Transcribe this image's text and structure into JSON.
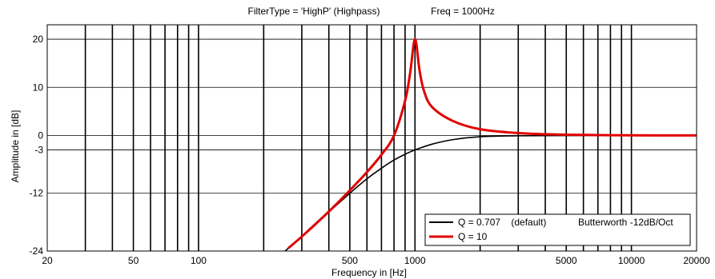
{
  "chart_data": {
    "type": "line",
    "title_left": "FilterType = 'HighP' (Highpass)",
    "title_right": "Freq = 1000Hz",
    "xlabel": "Frequency in [Hz]",
    "ylabel": "Amplitude in [dB]",
    "x_scale": "log",
    "xlim": [
      20,
      20000
    ],
    "ylim": [
      -24,
      23
    ],
    "x_ticks": [
      20,
      50,
      100,
      500,
      1000,
      5000,
      10000,
      20000
    ],
    "x_tick_labels": [
      "20",
      "50",
      "100",
      "500",
      "1000",
      "5000",
      "10000",
      "20000"
    ],
    "y_ticks": [
      -24,
      -12,
      -3,
      0,
      10,
      20
    ],
    "y_tick_labels": [
      "-24",
      "-12",
      "-3",
      "0",
      "10",
      "20"
    ],
    "grid": true,
    "legend_placement": "bottom-right",
    "series": [
      {
        "name": "Q = 0.707    (default)",
        "note": "Butterworth -12dB/Oct",
        "color": "#000000",
        "x": [
          250,
          300,
          400,
          500,
          600,
          700,
          800,
          900,
          1000,
          1200,
          1500,
          2000,
          3000,
          5000,
          10000,
          20000
        ],
        "values": [
          -24.1,
          -20.9,
          -15.9,
          -12.0,
          -9.0,
          -6.8,
          -5.1,
          -3.9,
          -3.0,
          -1.8,
          -0.85,
          -0.26,
          -0.05,
          -0.01,
          0.0,
          0.0
        ]
      },
      {
        "name": "Q = 10",
        "color": "#e00000",
        "x": [
          260,
          300,
          400,
          500,
          600,
          700,
          800,
          900,
          950,
          1000,
          1050,
          1100,
          1200,
          1500,
          2000,
          3000,
          5000,
          10000,
          20000
        ],
        "values": [
          -23.4,
          -21.0,
          -15.8,
          -11.4,
          -7.6,
          -4.0,
          0.0,
          7.2,
          13.0,
          20.0,
          13.5,
          9.3,
          5.9,
          3.0,
          1.3,
          0.5,
          0.17,
          0.04,
          0.01
        ]
      }
    ]
  }
}
